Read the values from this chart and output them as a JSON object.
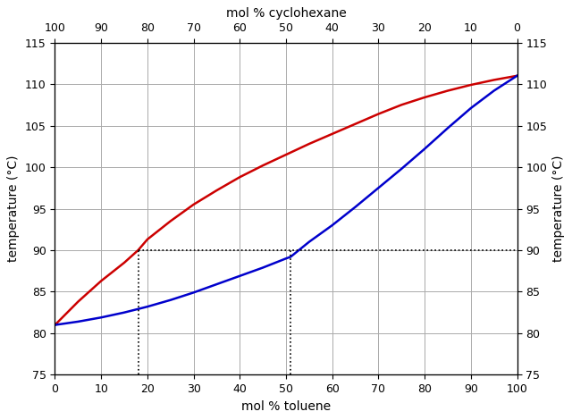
{
  "title_top": "mol % cyclohexane",
  "xlabel_bottom": "mol % toluene",
  "ylabel_left": "temperature (°C)",
  "ylabel_right": "temperature (°C)",
  "ylim": [
    75,
    115
  ],
  "xlim": [
    0,
    100
  ],
  "yticks": [
    75,
    80,
    85,
    90,
    95,
    100,
    105,
    110,
    115
  ],
  "xticks_bottom": [
    0,
    10,
    20,
    30,
    40,
    50,
    60,
    70,
    80,
    90,
    100
  ],
  "red_curve_color": "#cc0000",
  "blue_curve_color": "#0000cc",
  "dotted_line_color": "#000000",
  "background_color": "#ffffff",
  "grid_color": "#aaaaaa",
  "red_x": [
    0,
    5,
    10,
    15,
    18,
    20,
    25,
    30,
    35,
    40,
    45,
    50,
    55,
    60,
    65,
    70,
    75,
    80,
    85,
    90,
    95,
    100
  ],
  "red_y": [
    81.0,
    83.8,
    86.3,
    88.5,
    90.0,
    91.3,
    93.5,
    95.5,
    97.2,
    98.8,
    100.2,
    101.5,
    102.8,
    104.0,
    105.2,
    106.4,
    107.5,
    108.4,
    109.2,
    109.9,
    110.5,
    111.0
  ],
  "blue_x": [
    0,
    5,
    10,
    15,
    20,
    25,
    30,
    35,
    40,
    45,
    50,
    51,
    55,
    60,
    65,
    70,
    75,
    80,
    85,
    90,
    95,
    100
  ],
  "blue_y": [
    81.0,
    81.4,
    81.9,
    82.5,
    83.2,
    84.0,
    84.9,
    85.9,
    86.9,
    87.9,
    89.0,
    89.2,
    91.0,
    93.0,
    95.2,
    97.5,
    99.8,
    102.2,
    104.7,
    107.1,
    109.2,
    111.0
  ],
  "dotted_x1": 18,
  "dotted_x2": 51,
  "dotted_y": 90,
  "linewidth": 1.8,
  "fontsize_label": 10,
  "fontsize_tick": 9,
  "fontsize_title": 10
}
